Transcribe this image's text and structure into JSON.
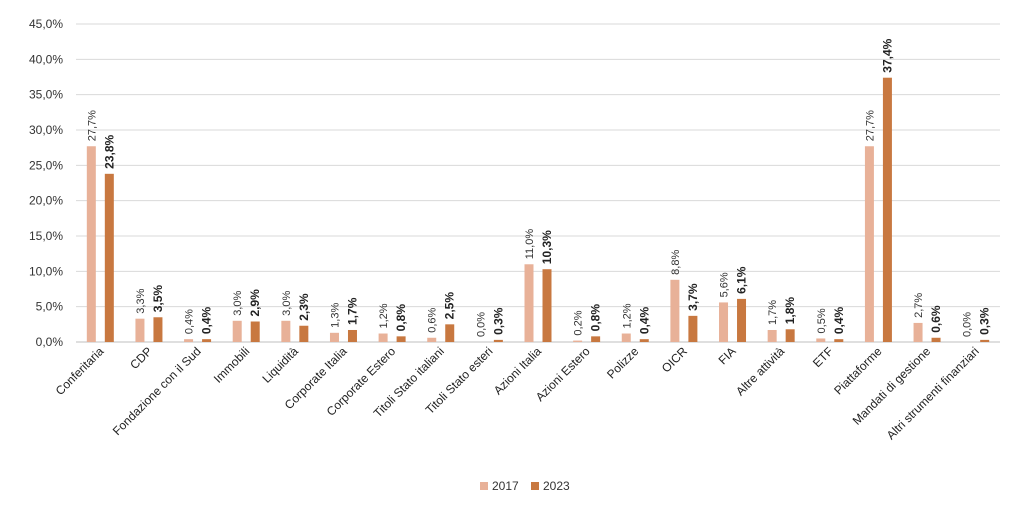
{
  "chart_data": {
    "type": "bar",
    "categories": [
      "Conferitaria",
      "CDP",
      "Fondazione con il Sud",
      "Immobili",
      "Liquidità",
      "Corporate Italia",
      "Corporate Estero",
      "Titoli Stato italiani",
      "Titoli Stato esteri",
      "Azioni Italia",
      "Azioni Estero",
      "Polizze",
      "OICR",
      "FIA",
      "Altre attività",
      "ETF",
      "Piattaforme",
      "Mandati di gestione",
      "Altri strumenti finanziari"
    ],
    "series": [
      {
        "name": "2017",
        "color": "#e8b198",
        "values": [
          27.7,
          3.3,
          0.4,
          3.0,
          3.0,
          1.3,
          1.2,
          0.6,
          0.0,
          11.0,
          0.2,
          1.2,
          8.8,
          5.6,
          1.7,
          0.5,
          27.7,
          2.7,
          0.0
        ],
        "labels": [
          "27,7%",
          "3,3%",
          "0,4%",
          "3,0%",
          "3,0%",
          "1,3%",
          "1,2%",
          "0,6%",
          "0,0%",
          "11,0%",
          "0,2%",
          "1,2%",
          "8,8%",
          "5,6%",
          "1,7%",
          "0,5%",
          "27,7%",
          "2,7%",
          "0,0%"
        ]
      },
      {
        "name": "2023",
        "color": "#c87840",
        "values": [
          23.8,
          3.5,
          0.4,
          2.9,
          2.3,
          1.7,
          0.8,
          2.5,
          0.3,
          10.3,
          0.8,
          0.4,
          3.7,
          6.1,
          1.8,
          0.4,
          37.4,
          0.6,
          0.3
        ],
        "labels": [
          "23,8%",
          "3,5%",
          "0,4%",
          "2,9%",
          "2,3%",
          "1,7%",
          "0,8%",
          "2,5%",
          "0,3%",
          "10,3%",
          "0,8%",
          "0,4%",
          "3,7%",
          "6,1%",
          "1,8%",
          "0,4%",
          "37,4%",
          "0,6%",
          "0,3%"
        ]
      }
    ],
    "ylim": [
      0,
      45
    ],
    "ytick_values": [
      0,
      5,
      10,
      15,
      20,
      25,
      30,
      35,
      40,
      45
    ],
    "ytick_labels": [
      "0,0%",
      "5,0%",
      "10,0%",
      "15,0%",
      "20,0%",
      "25,0%",
      "30,0%",
      "35,0%",
      "40,0%",
      "45,0%"
    ],
    "grid": true,
    "legend_position": "bottom"
  }
}
